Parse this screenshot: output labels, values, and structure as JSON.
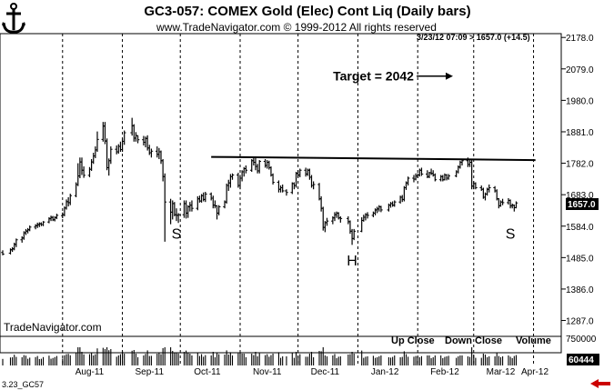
{
  "header": {
    "title": "GC3-057:  COMEX Gold (Elec) Cont Liq  (Daily bars)",
    "copyright": "www.TradeNavigator.com © 1999-2012 All rights reserved",
    "quote": "3/23/12 07:09 > 1657.0 (+14.5)"
  },
  "watermark": "TradeNavigator.com",
  "footer_code": "3.23_GC57",
  "last_price_tag": "1657.0",
  "volume_tag": "60444",
  "volume_legend": {
    "up": "Up Close",
    "down": "Down Close",
    "volume": "Volume"
  },
  "colors": {
    "bars": "#000000",
    "grid": "#000000",
    "price_tag": "#000000",
    "arrow": "#cc0000"
  },
  "chart_data": {
    "type": "ohlc",
    "title": "GC3-057:  COMEX Gold (Elec) Cont Liq  (Daily bars)",
    "x_tick_labels": [
      "Aug-11",
      "Sep-11",
      "Oct-11",
      "Nov-11",
      "Dec-11",
      "Jan-12",
      "Feb-12",
      "Mar-12",
      "Apr-12"
    ],
    "y_tick_labels": [
      "2178.0",
      "2079.0",
      "1980.0",
      "1881.0",
      "1782.0",
      "1683.0",
      "1584.0",
      "1485.0",
      "1386.0",
      "1287.0"
    ],
    "ylim": [
      1237,
      2190
    ],
    "volume_tick_label": "750000",
    "volume_ylim": [
      0,
      750000
    ],
    "grid": "vertical dotted at month starts",
    "annotations": [
      {
        "text": "S",
        "x": "2011-09-29",
        "y": 1545
      },
      {
        "text": "H",
        "x": "2011-12-29",
        "y": 1460
      },
      {
        "text": "S",
        "x": "2012-03-20",
        "y": 1545
      },
      {
        "text": "Target = 2042",
        "x": "2012-01-30",
        "y": 2042
      }
    ],
    "neckline": {
      "from": {
        "x": "2011-10-17",
        "y": 1802
      },
      "to": {
        "x": "2012-04-02",
        "y": 1792
      }
    },
    "ohlc_bars": [
      [
        "2011-07-01",
        1501,
        1508,
        1492,
        1496
      ],
      [
        "2011-07-05",
        1499,
        1514,
        1495,
        1510
      ],
      [
        "2011-07-06",
        1509,
        1518,
        1503,
        1513
      ],
      [
        "2011-07-07",
        1512,
        1532,
        1508,
        1527
      ],
      [
        "2011-07-08",
        1526,
        1545,
        1518,
        1541
      ],
      [
        "2011-07-11",
        1541,
        1552,
        1532,
        1547
      ],
      [
        "2011-07-12",
        1546,
        1568,
        1541,
        1563
      ],
      [
        "2011-07-13",
        1563,
        1575,
        1556,
        1569
      ],
      [
        "2011-07-14",
        1568,
        1578,
        1561,
        1573
      ],
      [
        "2011-07-15",
        1572,
        1586,
        1568,
        1581
      ],
      [
        "2011-07-18",
        1581,
        1590,
        1574,
        1586
      ],
      [
        "2011-07-19",
        1585,
        1595,
        1578,
        1589
      ],
      [
        "2011-07-20",
        1588,
        1596,
        1581,
        1592
      ],
      [
        "2011-07-21",
        1591,
        1596,
        1584,
        1589
      ],
      [
        "2011-07-22",
        1589,
        1600,
        1584,
        1597
      ],
      [
        "2011-07-25",
        1597,
        1612,
        1593,
        1608
      ],
      [
        "2011-07-26",
        1607,
        1617,
        1600,
        1612
      ],
      [
        "2011-07-27",
        1611,
        1616,
        1600,
        1604
      ],
      [
        "2011-07-28",
        1604,
        1615,
        1599,
        1611
      ],
      [
        "2011-07-29",
        1611,
        1623,
        1606,
        1618
      ],
      [
        "2011-08-01",
        1617,
        1627,
        1609,
        1620
      ],
      [
        "2011-08-02",
        1620,
        1646,
        1615,
        1641
      ],
      [
        "2011-08-03",
        1641,
        1668,
        1636,
        1661
      ],
      [
        "2011-08-04",
        1661,
        1675,
        1646,
        1658
      ],
      [
        "2011-08-05",
        1658,
        1686,
        1650,
        1680
      ],
      [
        "2011-08-08",
        1680,
        1722,
        1675,
        1715
      ],
      [
        "2011-08-09",
        1715,
        1782,
        1710,
        1742
      ],
      [
        "2011-08-10",
        1742,
        1800,
        1735,
        1786
      ],
      [
        "2011-08-11",
        1786,
        1800,
        1745,
        1760
      ],
      [
        "2011-08-12",
        1760,
        1772,
        1736,
        1744
      ],
      [
        "2011-08-15",
        1744,
        1770,
        1738,
        1763
      ],
      [
        "2011-08-16",
        1763,
        1795,
        1758,
        1786
      ],
      [
        "2011-08-17",
        1786,
        1815,
        1780,
        1805
      ],
      [
        "2011-08-18",
        1805,
        1835,
        1798,
        1824
      ],
      [
        "2011-08-19",
        1824,
        1882,
        1818,
        1857
      ],
      [
        "2011-08-22",
        1857,
        1912,
        1850,
        1899
      ],
      [
        "2011-08-23",
        1899,
        1912,
        1842,
        1852
      ],
      [
        "2011-08-24",
        1852,
        1860,
        1760,
        1768
      ],
      [
        "2011-08-25",
        1768,
        1797,
        1743,
        1790
      ],
      [
        "2011-08-26",
        1790,
        1835,
        1780,
        1826
      ],
      [
        "2011-08-29",
        1826,
        1838,
        1810,
        1818
      ],
      [
        "2011-08-30",
        1818,
        1842,
        1812,
        1835
      ],
      [
        "2011-08-31",
        1835,
        1850,
        1818,
        1825
      ],
      [
        "2011-09-01",
        1825,
        1860,
        1818,
        1851
      ],
      [
        "2011-09-02",
        1851,
        1885,
        1840,
        1878
      ],
      [
        "2011-09-06",
        1878,
        1925,
        1869,
        1900
      ],
      [
        "2011-09-07",
        1900,
        1905,
        1850,
        1861
      ],
      [
        "2011-09-08",
        1861,
        1880,
        1850,
        1869
      ],
      [
        "2011-09-09",
        1869,
        1870,
        1845,
        1856
      ],
      [
        "2011-09-12",
        1856,
        1868,
        1838,
        1848
      ],
      [
        "2011-09-13",
        1848,
        1866,
        1832,
        1860
      ],
      [
        "2011-09-14",
        1860,
        1870,
        1822,
        1830
      ],
      [
        "2011-09-15",
        1830,
        1840,
        1808,
        1815
      ],
      [
        "2011-09-16",
        1815,
        1828,
        1800,
        1820
      ],
      [
        "2011-09-19",
        1820,
        1835,
        1800,
        1810
      ],
      [
        "2011-09-20",
        1810,
        1830,
        1795,
        1818
      ],
      [
        "2011-09-21",
        1818,
        1822,
        1780,
        1790
      ],
      [
        "2011-09-22",
        1790,
        1795,
        1725,
        1740
      ],
      [
        "2011-09-23",
        1740,
        1750,
        1535,
        1660
      ],
      [
        "2011-09-26",
        1660,
        1670,
        1590,
        1628
      ],
      [
        "2011-09-27",
        1628,
        1665,
        1605,
        1655
      ],
      [
        "2011-09-28",
        1655,
        1660,
        1615,
        1620
      ],
      [
        "2011-09-29",
        1620,
        1640,
        1600,
        1618
      ],
      [
        "2011-09-30",
        1618,
        1625,
        1594,
        1620
      ],
      [
        "2011-10-03",
        1620,
        1665,
        1610,
        1655
      ],
      [
        "2011-10-04",
        1655,
        1665,
        1608,
        1625
      ],
      [
        "2011-10-05",
        1625,
        1650,
        1610,
        1645
      ],
      [
        "2011-10-06",
        1645,
        1660,
        1630,
        1650
      ],
      [
        "2011-10-07",
        1650,
        1665,
        1630,
        1640
      ],
      [
        "2011-10-10",
        1640,
        1678,
        1634,
        1670
      ],
      [
        "2011-10-11",
        1670,
        1680,
        1658,
        1663
      ],
      [
        "2011-10-12",
        1663,
        1685,
        1658,
        1680
      ],
      [
        "2011-10-13",
        1680,
        1690,
        1662,
        1668
      ],
      [
        "2011-10-14",
        1668,
        1692,
        1660,
        1685
      ],
      [
        "2011-10-17",
        1685,
        1690,
        1665,
        1672
      ],
      [
        "2011-10-18",
        1672,
        1680,
        1640,
        1650
      ],
      [
        "2011-10-19",
        1650,
        1665,
        1640,
        1648
      ],
      [
        "2011-10-20",
        1648,
        1650,
        1605,
        1625
      ],
      [
        "2011-10-21",
        1625,
        1650,
        1618,
        1645
      ],
      [
        "2011-10-24",
        1645,
        1665,
        1640,
        1660
      ],
      [
        "2011-10-25",
        1660,
        1718,
        1655,
        1712
      ],
      [
        "2011-10-26",
        1712,
        1730,
        1695,
        1720
      ],
      [
        "2011-10-27",
        1720,
        1748,
        1705,
        1740
      ],
      [
        "2011-10-28",
        1740,
        1750,
        1730,
        1745
      ],
      [
        "2011-10-31",
        1745,
        1752,
        1705,
        1712
      ],
      [
        "2011-11-01",
        1712,
        1745,
        1700,
        1735
      ],
      [
        "2011-11-02",
        1735,
        1760,
        1725,
        1755
      ],
      [
        "2011-11-03",
        1755,
        1770,
        1740,
        1765
      ],
      [
        "2011-11-04",
        1765,
        1775,
        1750,
        1760
      ],
      [
        "2011-11-07",
        1760,
        1795,
        1755,
        1790
      ],
      [
        "2011-11-08",
        1790,
        1802,
        1775,
        1785
      ],
      [
        "2011-11-09",
        1785,
        1800,
        1760,
        1772
      ],
      [
        "2011-11-10",
        1772,
        1780,
        1750,
        1758
      ],
      [
        "2011-11-11",
        1758,
        1792,
        1750,
        1788
      ],
      [
        "2011-11-14",
        1788,
        1795,
        1768,
        1775
      ],
      [
        "2011-11-15",
        1775,
        1792,
        1765,
        1785
      ],
      [
        "2011-11-16",
        1785,
        1790,
        1762,
        1768
      ],
      [
        "2011-11-17",
        1768,
        1772,
        1740,
        1745
      ],
      [
        "2011-11-18",
        1745,
        1750,
        1715,
        1722
      ],
      [
        "2011-11-21",
        1722,
        1728,
        1690,
        1700
      ],
      [
        "2011-11-22",
        1700,
        1712,
        1690,
        1705
      ],
      [
        "2011-11-23",
        1705,
        1715,
        1690,
        1695
      ],
      [
        "2011-11-25",
        1695,
        1700,
        1680,
        1690
      ],
      [
        "2011-11-28",
        1690,
        1722,
        1685,
        1718
      ],
      [
        "2011-11-29",
        1718,
        1722,
        1700,
        1712
      ],
      [
        "2011-11-30",
        1712,
        1755,
        1705,
        1750
      ],
      [
        "2011-12-01",
        1750,
        1760,
        1738,
        1745
      ],
      [
        "2011-12-02",
        1745,
        1765,
        1738,
        1760
      ],
      [
        "2011-12-05",
        1760,
        1768,
        1740,
        1748
      ],
      [
        "2011-12-06",
        1748,
        1765,
        1742,
        1760
      ],
      [
        "2011-12-07",
        1760,
        1765,
        1730,
        1738
      ],
      [
        "2011-12-08",
        1738,
        1745,
        1705,
        1712
      ],
      [
        "2011-12-09",
        1712,
        1725,
        1700,
        1715
      ],
      [
        "2011-12-12",
        1715,
        1720,
        1665,
        1670
      ],
      [
        "2011-12-13",
        1670,
        1678,
        1630,
        1640
      ],
      [
        "2011-12-14",
        1640,
        1645,
        1570,
        1580
      ],
      [
        "2011-12-15",
        1580,
        1600,
        1565,
        1595
      ],
      [
        "2011-12-16",
        1595,
        1610,
        1585,
        1600
      ],
      [
        "2011-12-19",
        1600,
        1615,
        1590,
        1610
      ],
      [
        "2011-12-20",
        1610,
        1628,
        1600,
        1620
      ],
      [
        "2011-12-21",
        1620,
        1630,
        1610,
        1625
      ],
      [
        "2011-12-22",
        1625,
        1628,
        1605,
        1610
      ],
      [
        "2011-12-23",
        1610,
        1615,
        1595,
        1608
      ],
      [
        "2011-12-27",
        1608,
        1615,
        1590,
        1598
      ],
      [
        "2011-12-28",
        1598,
        1602,
        1560,
        1568
      ],
      [
        "2011-12-29",
        1568,
        1575,
        1525,
        1545
      ],
      [
        "2011-12-30",
        1545,
        1575,
        1540,
        1568
      ],
      [
        "2012-01-03",
        1568,
        1612,
        1565,
        1602
      ],
      [
        "2012-01-04",
        1602,
        1620,
        1598,
        1612
      ],
      [
        "2012-01-05",
        1612,
        1625,
        1602,
        1620
      ],
      [
        "2012-01-06",
        1620,
        1628,
        1608,
        1618
      ],
      [
        "2012-01-09",
        1618,
        1630,
        1612,
        1625
      ],
      [
        "2012-01-10",
        1625,
        1640,
        1618,
        1635
      ],
      [
        "2012-01-11",
        1635,
        1645,
        1625,
        1638
      ],
      [
        "2012-01-12",
        1638,
        1650,
        1630,
        1645
      ],
      [
        "2012-01-13",
        1645,
        1648,
        1628,
        1635
      ],
      [
        "2012-01-17",
        1635,
        1655,
        1630,
        1650
      ],
      [
        "2012-01-18",
        1650,
        1660,
        1642,
        1655
      ],
      [
        "2012-01-19",
        1655,
        1662,
        1645,
        1650
      ],
      [
        "2012-01-20",
        1650,
        1665,
        1645,
        1660
      ],
      [
        "2012-01-23",
        1660,
        1680,
        1655,
        1675
      ],
      [
        "2012-01-24",
        1675,
        1682,
        1660,
        1668
      ],
      [
        "2012-01-25",
        1668,
        1710,
        1662,
        1705
      ],
      [
        "2012-01-26",
        1705,
        1725,
        1698,
        1720
      ],
      [
        "2012-01-27",
        1720,
        1740,
        1712,
        1735
      ],
      [
        "2012-01-30",
        1735,
        1745,
        1722,
        1732
      ],
      [
        "2012-01-31",
        1732,
        1750,
        1728,
        1742
      ],
      [
        "2012-02-01",
        1742,
        1750,
        1735,
        1745
      ],
      [
        "2012-02-02",
        1745,
        1765,
        1740,
        1760
      ],
      [
        "2012-02-03",
        1760,
        1768,
        1742,
        1748
      ],
      [
        "2012-02-06",
        1748,
        1760,
        1735,
        1740
      ],
      [
        "2012-02-07",
        1740,
        1755,
        1735,
        1752
      ],
      [
        "2012-02-08",
        1752,
        1765,
        1745,
        1750
      ],
      [
        "2012-02-09",
        1750,
        1760,
        1740,
        1745
      ],
      [
        "2012-02-10",
        1745,
        1750,
        1725,
        1730
      ],
      [
        "2012-02-13",
        1730,
        1745,
        1725,
        1740
      ],
      [
        "2012-02-14",
        1740,
        1745,
        1725,
        1730
      ],
      [
        "2012-02-15",
        1730,
        1750,
        1728,
        1745
      ],
      [
        "2012-02-16",
        1745,
        1748,
        1728,
        1735
      ],
      [
        "2012-02-17",
        1735,
        1748,
        1730,
        1742
      ],
      [
        "2012-02-21",
        1742,
        1760,
        1738,
        1755
      ],
      [
        "2012-02-22",
        1755,
        1775,
        1750,
        1770
      ],
      [
        "2012-02-23",
        1770,
        1790,
        1765,
        1785
      ],
      [
        "2012-02-24",
        1785,
        1795,
        1775,
        1790
      ],
      [
        "2012-02-27",
        1790,
        1800,
        1770,
        1778
      ],
      [
        "2012-02-28",
        1778,
        1792,
        1770,
        1785
      ],
      [
        "2012-02-29",
        1785,
        1792,
        1700,
        1710
      ],
      [
        "2012-03-01",
        1710,
        1725,
        1700,
        1718
      ],
      [
        "2012-03-02",
        1718,
        1722,
        1700,
        1705
      ],
      [
        "2012-03-05",
        1705,
        1712,
        1695,
        1700
      ],
      [
        "2012-03-06",
        1700,
        1705,
        1670,
        1675
      ],
      [
        "2012-03-07",
        1675,
        1690,
        1665,
        1685
      ],
      [
        "2012-03-08",
        1685,
        1705,
        1680,
        1700
      ],
      [
        "2012-03-09",
        1700,
        1715,
        1690,
        1705
      ],
      [
        "2012-03-12",
        1705,
        1710,
        1690,
        1695
      ],
      [
        "2012-03-13",
        1695,
        1700,
        1665,
        1670
      ],
      [
        "2012-03-14",
        1670,
        1672,
        1640,
        1648
      ],
      [
        "2012-03-15",
        1648,
        1665,
        1645,
        1660
      ],
      [
        "2012-03-16",
        1660,
        1670,
        1650,
        1658
      ],
      [
        "2012-03-19",
        1658,
        1672,
        1652,
        1665
      ],
      [
        "2012-03-20",
        1665,
        1668,
        1640,
        1648
      ],
      [
        "2012-03-21",
        1648,
        1655,
        1640,
        1650
      ],
      [
        "2012-03-22",
        1650,
        1652,
        1630,
        1642
      ],
      [
        "2012-03-23",
        1642,
        1662,
        1640,
        1657
      ]
    ]
  }
}
